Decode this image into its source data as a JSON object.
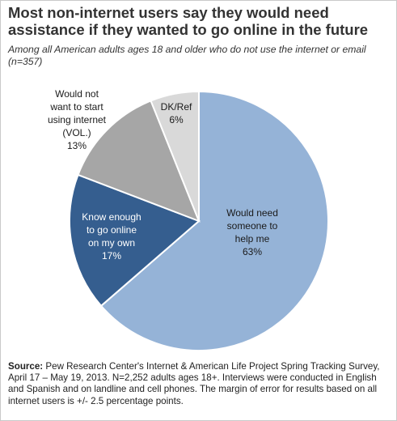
{
  "title": "Most non-internet users say they would need assistance if they wanted to go online in the future",
  "subtitle": "Among all American adults ages 18 and older who do not use the internet or email (n=357)",
  "source": {
    "label": "Source:",
    "text": "Pew Research Center's Internet & American Life Project Spring Tracking Survey, April 17 – May 19, 2013. N=2,252 adults ages 18+. Interviews were conducted in English and Spanish and on landline and cell phones.  The margin of error for results based on all internet users is +/- 2.5 percentage points."
  },
  "chart_data": {
    "type": "pie",
    "title": "",
    "slices": [
      {
        "label_lines": [
          "Would need",
          "someone to",
          "help me",
          "63%"
        ],
        "value": 63,
        "color": "#95b3d7",
        "label_color": "#1a1a1a"
      },
      {
        "label_lines": [
          "Know enough",
          "to go online",
          "on my own",
          "17%"
        ],
        "value": 17,
        "color": "#355e8f",
        "label_color": "#ffffff"
      },
      {
        "label_lines": [
          "Would not",
          "want to start",
          "using internet",
          "(VOL.)",
          "13%"
        ],
        "value": 13,
        "color": "#a6a6a6",
        "label_color": "#1a1a1a"
      },
      {
        "label_lines": [
          "DK/Ref",
          "6%"
        ],
        "value": 6,
        "color": "#d9d9d9",
        "label_color": "#1a1a1a"
      }
    ],
    "start": "12 o'clock",
    "direction": "clockwise"
  }
}
